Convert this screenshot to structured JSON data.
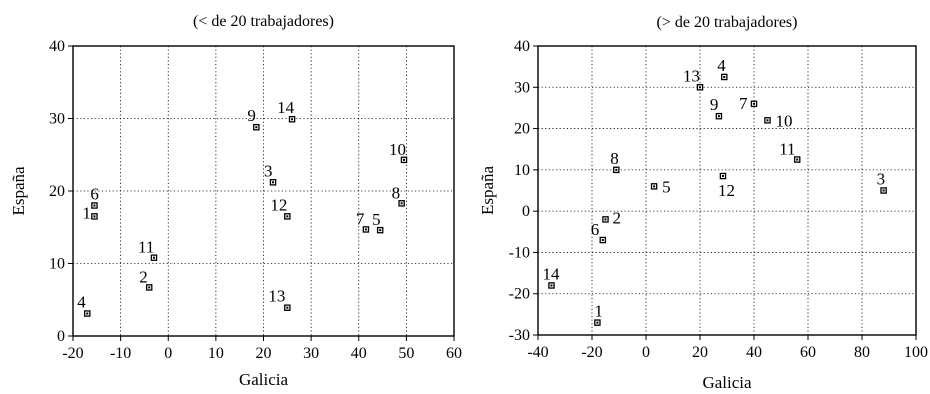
{
  "chart_data": [
    {
      "type": "scatter",
      "title": "(< de 20 trabajadores)",
      "xlabel": "Galicia",
      "ylabel": "España",
      "xlim": [
        -20,
        60
      ],
      "ylim": [
        0,
        40
      ],
      "xticks": [
        -20,
        -10,
        0,
        10,
        20,
        30,
        40,
        50,
        60
      ],
      "yticks": [
        0,
        10,
        20,
        30,
        40
      ],
      "grid": true,
      "points": [
        {
          "label": "1",
          "x": -15.5,
          "y": 16.5
        },
        {
          "label": "2",
          "x": -4,
          "y": 6.7
        },
        {
          "label": "4",
          "x": -17,
          "y": 3.1
        },
        {
          "label": "6",
          "x": -15.5,
          "y": 18
        },
        {
          "label": "11",
          "x": -3,
          "y": 10.8
        },
        {
          "label": "9",
          "x": 18.5,
          "y": 28.8
        },
        {
          "label": "14",
          "x": 26,
          "y": 29.9
        },
        {
          "label": "3",
          "x": 22,
          "y": 21.2
        },
        {
          "label": "12",
          "x": 25,
          "y": 16.5
        },
        {
          "label": "13",
          "x": 25,
          "y": 3.9
        },
        {
          "label": "7",
          "x": 41.5,
          "y": 14.7
        },
        {
          "label": "5",
          "x": 44.5,
          "y": 14.6
        },
        {
          "label": "10",
          "x": 49.5,
          "y": 24.3
        },
        {
          "label": "8",
          "x": 49,
          "y": 18.3
        }
      ]
    },
    {
      "type": "scatter",
      "title": "(> de 20 trabajadores)",
      "xlabel": "Galicia",
      "ylabel": "España",
      "xlim": [
        -40,
        100
      ],
      "ylim": [
        -30,
        40
      ],
      "xticks": [
        -40,
        -20,
        0,
        20,
        40,
        60,
        80,
        100
      ],
      "yticks": [
        -30,
        -20,
        -10,
        0,
        10,
        20,
        30,
        40
      ],
      "grid": true,
      "points": [
        {
          "label": "1",
          "x": -18,
          "y": -27
        },
        {
          "label": "14",
          "x": -35,
          "y": -18
        },
        {
          "label": "6",
          "x": -16,
          "y": -7
        },
        {
          "label": "2",
          "x": -15,
          "y": -2
        },
        {
          "label": "8",
          "x": -11,
          "y": 10
        },
        {
          "label": "5",
          "x": 3,
          "y": 6
        },
        {
          "label": "13",
          "x": 20,
          "y": 30
        },
        {
          "label": "4",
          "x": 29,
          "y": 32.5
        },
        {
          "label": "9",
          "x": 27,
          "y": 23
        },
        {
          "label": "12",
          "x": 28.5,
          "y": 8.5
        },
        {
          "label": "7",
          "x": 40,
          "y": 26
        },
        {
          "label": "10",
          "x": 45,
          "y": 22
        },
        {
          "label": "11",
          "x": 56,
          "y": 12.5
        },
        {
          "label": "3",
          "x": 88,
          "y": 5
        }
      ]
    }
  ]
}
